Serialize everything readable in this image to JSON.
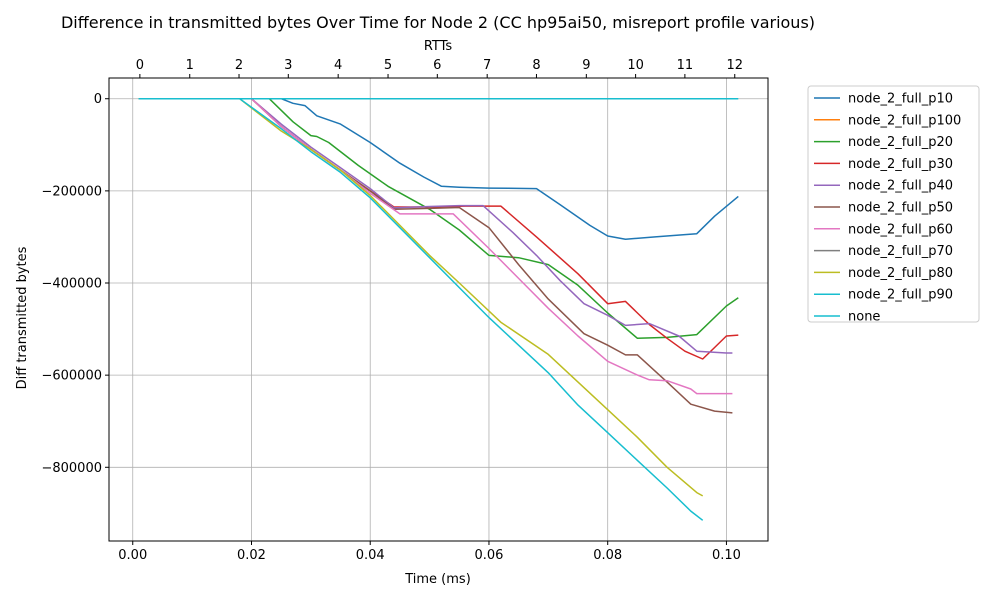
{
  "chart_data": {
    "type": "line",
    "title": "Difference in transmitted bytes Over Time for Node 2 (CC hp95ai50, misreport profile various)",
    "xlabel": "Time (ms)",
    "ylabel": "Diff transmitted bytes",
    "top_xlabel": "RTTs",
    "xlim": [
      -0.004,
      0.107
    ],
    "ylim": [
      -960000,
      45000
    ],
    "x_ticks": [
      0.0,
      0.02,
      0.04,
      0.06,
      0.08,
      0.1
    ],
    "x_tick_labels": [
      "0.00",
      "0.02",
      "0.04",
      "0.06",
      "0.08",
      "0.10"
    ],
    "y_ticks": [
      0,
      -200000,
      -400000,
      -600000,
      -800000
    ],
    "y_tick_labels": [
      "0",
      "−200000",
      "−400000",
      "−600000",
      "−800000"
    ],
    "top_ticks": [
      0.0012,
      0.0096,
      0.0179,
      0.0262,
      0.0346,
      0.043,
      0.0513,
      0.0597,
      0.068,
      0.0764,
      0.0847,
      0.093,
      0.1014
    ],
    "top_tick_labels": [
      "0",
      "1",
      "2",
      "3",
      "4",
      "5",
      "6",
      "7",
      "8",
      "9",
      "10",
      "11",
      "12"
    ],
    "grid": true,
    "legend_position": "outside-right",
    "series": [
      {
        "name": "node_2_full_p10",
        "color": "#1f77b4",
        "x": [
          0.001,
          0.025,
          0.027,
          0.029,
          0.031,
          0.035,
          0.04,
          0.045,
          0.049,
          0.052,
          0.055,
          0.06,
          0.068,
          0.072,
          0.077,
          0.08,
          0.083,
          0.088,
          0.093,
          0.095,
          0.098,
          0.102
        ],
        "y": [
          0,
          0,
          -10000,
          -15000,
          -37000,
          -55000,
          -95000,
          -140000,
          -170000,
          -190000,
          -192000,
          -194000,
          -195000,
          -230000,
          -275000,
          -298000,
          -305000,
          -300000,
          -295000,
          -293000,
          -255000,
          -212000
        ]
      },
      {
        "name": "node_2_full_p100",
        "color": "#ff7f0e",
        "x": [
          0.001,
          0.018
        ],
        "y": [
          0,
          0
        ]
      },
      {
        "name": "node_2_full_p20",
        "color": "#2ca02c",
        "x": [
          0.001,
          0.023,
          0.027,
          0.03,
          0.031,
          0.033,
          0.038,
          0.043,
          0.05,
          0.055,
          0.06,
          0.065,
          0.07,
          0.075,
          0.08,
          0.085,
          0.09,
          0.095,
          0.1,
          0.102
        ],
        "y": [
          0,
          0,
          -50000,
          -80000,
          -82000,
          -95000,
          -145000,
          -190000,
          -240000,
          -285000,
          -340000,
          -345000,
          -360000,
          -405000,
          -465000,
          -520000,
          -518000,
          -512000,
          -450000,
          -432000
        ]
      },
      {
        "name": "node_2_full_p30",
        "color": "#d62728",
        "x": [
          0.001,
          0.02,
          0.025,
          0.03,
          0.035,
          0.04,
          0.044,
          0.05,
          0.056,
          0.062,
          0.068,
          0.075,
          0.08,
          0.083,
          0.087,
          0.09,
          0.093,
          0.096,
          0.098,
          0.1,
          0.102
        ],
        "y": [
          0,
          0,
          -60000,
          -110000,
          -155000,
          -200000,
          -235000,
          -235000,
          -233000,
          -233000,
          -300000,
          -380000,
          -445000,
          -440000,
          -490000,
          -520000,
          -548000,
          -565000,
          -540000,
          -515000,
          -513000
        ]
      },
      {
        "name": "node_2_full_p40",
        "color": "#9467bd",
        "x": [
          0.001,
          0.02,
          0.025,
          0.03,
          0.035,
          0.04,
          0.044,
          0.05,
          0.055,
          0.059,
          0.064,
          0.068,
          0.072,
          0.076,
          0.08,
          0.083,
          0.087,
          0.092,
          0.095,
          0.1,
          0.101
        ],
        "y": [
          0,
          0,
          -55000,
          -105000,
          -150000,
          -195000,
          -237000,
          -234000,
          -232000,
          -232000,
          -290000,
          -340000,
          -395000,
          -445000,
          -470000,
          -492000,
          -488000,
          -515000,
          -548000,
          -552000,
          -552000
        ]
      },
      {
        "name": "node_2_full_p50",
        "color": "#8c564b",
        "x": [
          0.001,
          0.02,
          0.025,
          0.03,
          0.035,
          0.04,
          0.044,
          0.05,
          0.055,
          0.06,
          0.065,
          0.07,
          0.076,
          0.08,
          0.083,
          0.085,
          0.09,
          0.094,
          0.098,
          0.101
        ],
        "y": [
          0,
          0,
          -60000,
          -110000,
          -155000,
          -200000,
          -240000,
          -238000,
          -236000,
          -280000,
          -360000,
          -435000,
          -510000,
          -535000,
          -556000,
          -556000,
          -615000,
          -663000,
          -678000,
          -682000
        ]
      },
      {
        "name": "node_2_full_p60",
        "color": "#e377c2",
        "x": [
          0.001,
          0.02,
          0.025,
          0.03,
          0.035,
          0.04,
          0.045,
          0.05,
          0.054,
          0.06,
          0.065,
          0.07,
          0.075,
          0.08,
          0.085,
          0.087,
          0.09,
          0.094,
          0.095,
          0.1,
          0.101
        ],
        "y": [
          0,
          0,
          -60000,
          -110000,
          -155000,
          -205000,
          -250000,
          -250000,
          -250000,
          -325000,
          -390000,
          -455000,
          -515000,
          -570000,
          -600000,
          -610000,
          -612000,
          -630000,
          -640000,
          -640000,
          -640000
        ]
      },
      {
        "name": "node_2_full_p70",
        "color": "#7f7f7f",
        "x": [
          0.001,
          0.018
        ],
        "y": [
          0,
          0
        ]
      },
      {
        "name": "node_2_full_p80",
        "color": "#bcbd22",
        "x": [
          0.001,
          0.018,
          0.025,
          0.03,
          0.035,
          0.04,
          0.045,
          0.05,
          0.055,
          0.062,
          0.07,
          0.075,
          0.08,
          0.085,
          0.09,
          0.095,
          0.096
        ],
        "y": [
          0,
          0,
          -70000,
          -110000,
          -155000,
          -210000,
          -275000,
          -340000,
          -400000,
          -485000,
          -555000,
          -615000,
          -675000,
          -735000,
          -800000,
          -855000,
          -862000
        ]
      },
      {
        "name": "node_2_full_p90",
        "color": "#17becf",
        "x": [
          0.001,
          0.018,
          0.025,
          0.03,
          0.035,
          0.04,
          0.045,
          0.05,
          0.055,
          0.06,
          0.065,
          0.07,
          0.075,
          0.08,
          0.085,
          0.09,
          0.094,
          0.096
        ],
        "y": [
          0,
          0,
          -65000,
          -115000,
          -160000,
          -215000,
          -280000,
          -345000,
          -410000,
          -475000,
          -535000,
          -595000,
          -665000,
          -725000,
          -785000,
          -845000,
          -895000,
          -915000
        ]
      },
      {
        "name": "none",
        "color": "#17becf",
        "x": [
          0.001,
          0.102
        ],
        "y": [
          0,
          0
        ]
      }
    ]
  }
}
